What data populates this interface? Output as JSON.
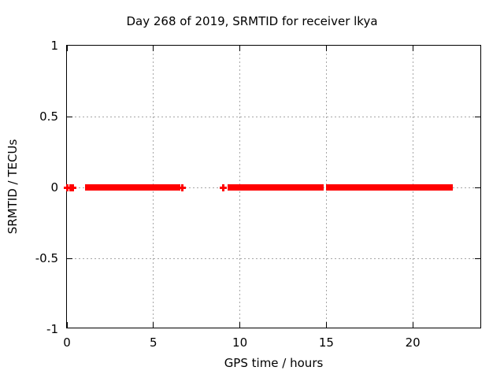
{
  "chart_data": {
    "type": "scatter",
    "title": "Day 268 of 2019, SRMTID for receiver lkya",
    "xlabel": "GPS time / hours",
    "ylabel": "SRMTID / TECUs",
    "xlim": [
      0,
      24
    ],
    "ylim": [
      -1,
      1
    ],
    "xticks": [
      0,
      5,
      10,
      15,
      20
    ],
    "xtick_labels": [
      "0",
      "5",
      "10",
      "15",
      "20"
    ],
    "yticks": [
      -1,
      -0.5,
      0,
      0.5,
      1
    ],
    "ytick_labels": [
      "-1",
      "-0.5",
      "0",
      "0.5",
      "1"
    ],
    "grid": true,
    "legend": "none",
    "marker": "plus",
    "colors": {
      "data": "#ff0000",
      "grid": "#a6a6a6",
      "axis": "#000000",
      "background": "#ffffff"
    },
    "series": [
      {
        "name": "SRMTID",
        "y_constant": 0,
        "segments_hours": [
          [
            1.05,
            6.55
          ],
          [
            9.3,
            14.85
          ],
          [
            15.0,
            22.3
          ]
        ],
        "isolated_points_hours": [
          0.0,
          0.2,
          0.32,
          6.68,
          9.02
        ]
      }
    ]
  }
}
